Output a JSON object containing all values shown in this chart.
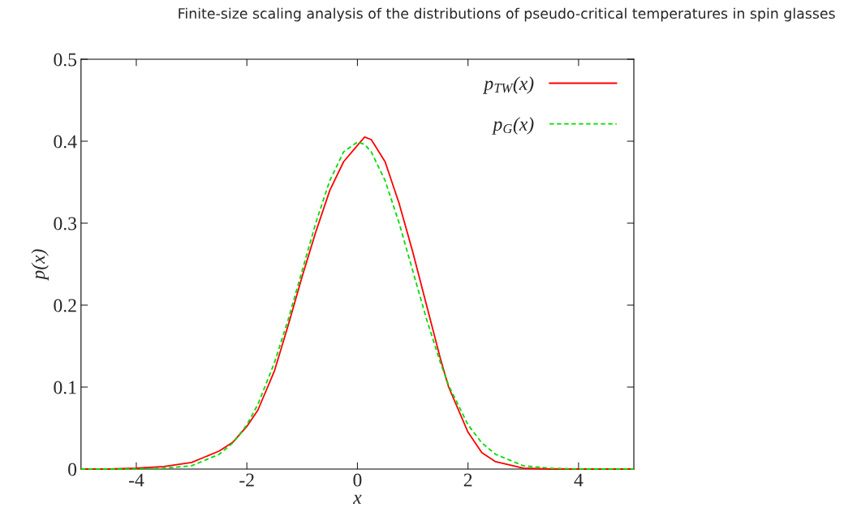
{
  "chart_data": {
    "type": "line",
    "title": "Finite-size scaling analysis of the distributions of pseudo-critical temperatures in spin glasses",
    "xlabel": "x",
    "ylabel": "p(x)",
    "x": [
      -5,
      -4.5,
      -4,
      -3.5,
      -3,
      -2.5,
      -2.25,
      -2,
      -1.8,
      -1.5,
      -1.25,
      -1,
      -0.75,
      -0.5,
      -0.25,
      0,
      0.13,
      0.25,
      0.5,
      0.75,
      1,
      1.25,
      1.5,
      1.65,
      2,
      2.25,
      2.5,
      3,
      3.5,
      4,
      4.5,
      5
    ],
    "series": [
      {
        "name": "p$_{TW}$(x)",
        "color": "#ff0000",
        "line_style": "solid",
        "values": [
          0,
          0,
          0.001,
          0.003,
          0.008,
          0.022,
          0.033,
          0.052,
          0.072,
          0.12,
          0.176,
          0.235,
          0.29,
          0.34,
          0.375,
          0.395,
          0.405,
          0.402,
          0.375,
          0.325,
          0.265,
          0.2,
          0.135,
          0.1,
          0.045,
          0.02,
          0.009,
          0.001,
          0,
          0,
          0,
          0
        ]
      },
      {
        "name": "p$_{G}$(x)",
        "color": "#00dd00",
        "line_style": "dashed",
        "values": [
          0,
          0,
          0,
          0.001,
          0.004,
          0.018,
          0.032,
          0.054,
          0.079,
          0.13,
          0.183,
          0.242,
          0.301,
          0.352,
          0.387,
          0.399,
          0.396,
          0.387,
          0.352,
          0.301,
          0.242,
          0.183,
          0.13,
          0.102,
          0.054,
          0.032,
          0.018,
          0.004,
          0.001,
          0,
          0,
          0
        ]
      }
    ],
    "xlim": [
      -5,
      5
    ],
    "xticks": [
      -4,
      -2,
      0,
      2,
      4
    ],
    "ylim": [
      0,
      0.5
    ],
    "yticks": [
      0,
      0.1,
      0.2,
      0.3,
      0.4,
      0.5
    ],
    "grid": false,
    "legend": "top right",
    "marker": "none"
  }
}
